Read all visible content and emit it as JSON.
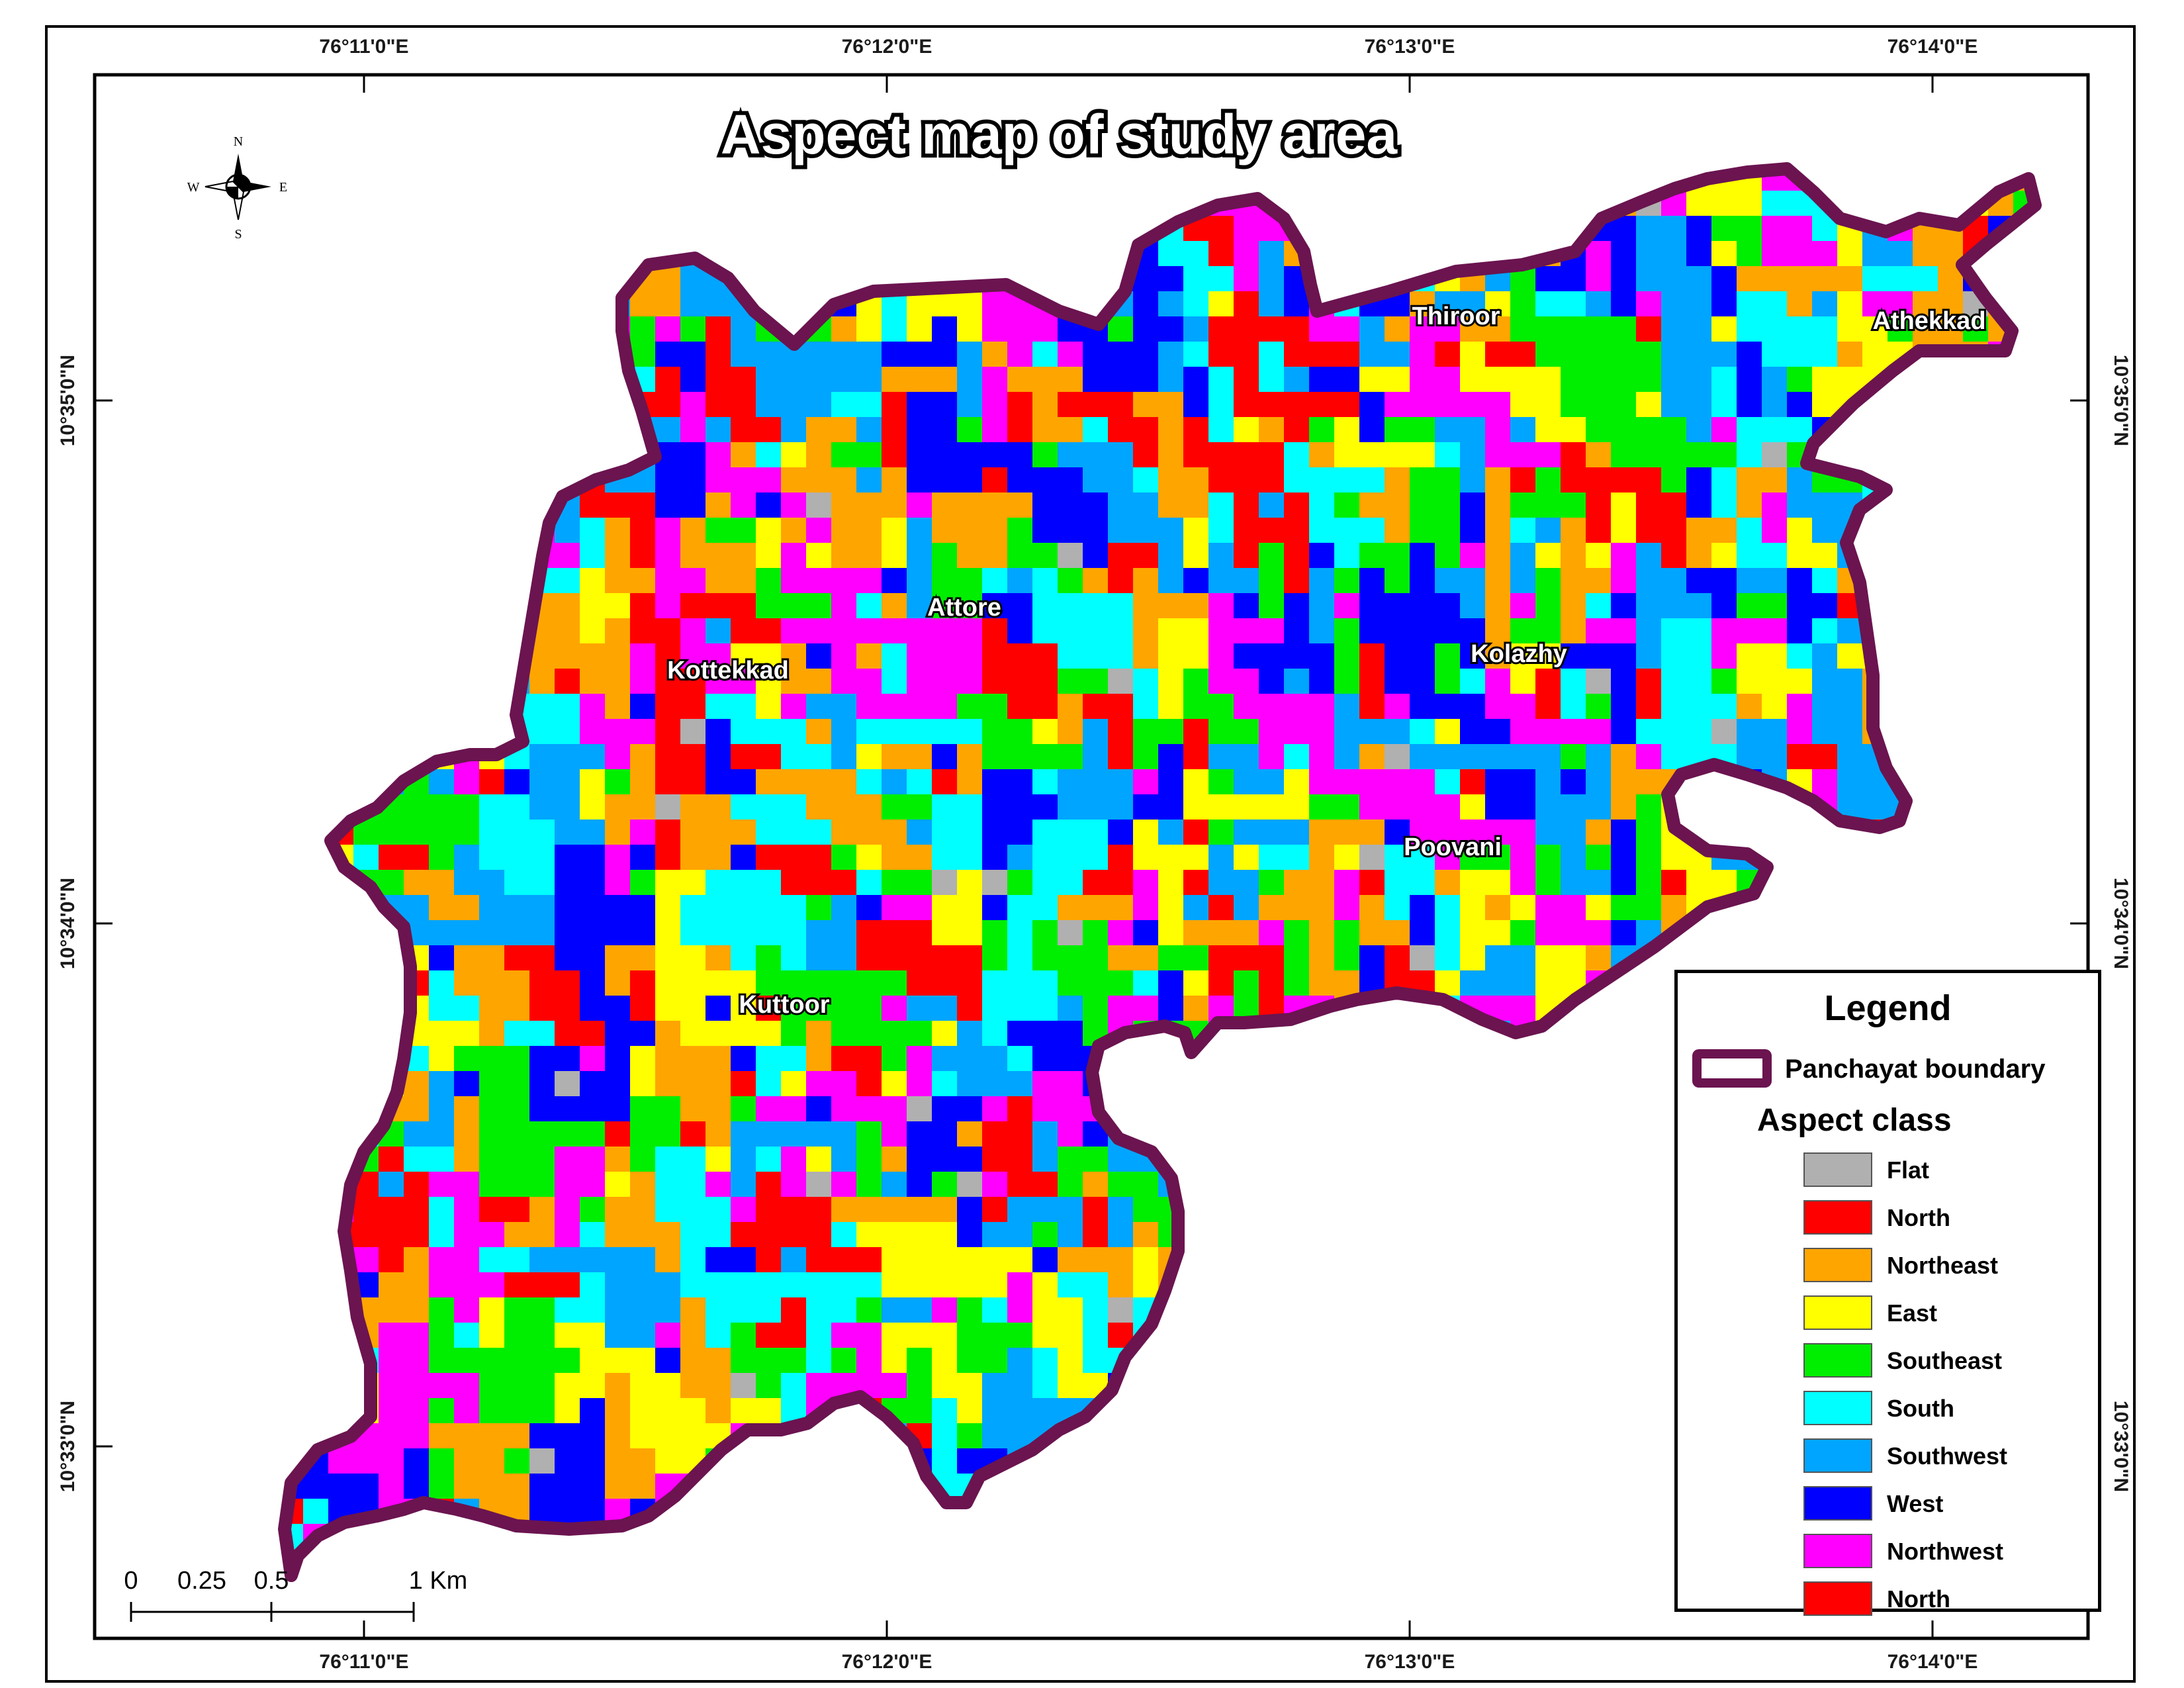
{
  "map_title": "Aspect map of study area",
  "graticule": {
    "longitudes": [
      "76°11'0\"E",
      "76°12'0\"E",
      "76°13'0\"E",
      "76°14'0\"E"
    ],
    "latitudes": [
      "10°35'0\"N",
      "10°34'0\"N",
      "10°33'0\"N"
    ]
  },
  "compass": {
    "n": "N",
    "s": "S",
    "e": "E",
    "w": "W"
  },
  "places": [
    "Thiroor",
    "Athekkad",
    "Attore",
    "Kottekkad",
    "Kolazhy",
    "Poovani",
    "Kuttoor"
  ],
  "scale_bar": {
    "labels": [
      "0",
      "0.25",
      "0.5",
      "1 Km"
    ]
  },
  "legend": {
    "title": "Legend",
    "boundary_label": "Panchayat boundary",
    "boundary_color": "#6b1450",
    "class_title": "Aspect class",
    "items": [
      {
        "label": "Flat",
        "color": "#b0b0b0"
      },
      {
        "label": "North",
        "color": "#ff0000"
      },
      {
        "label": "Northeast",
        "color": "#ffa500"
      },
      {
        "label": "East",
        "color": "#ffff00"
      },
      {
        "label": "Southeast",
        "color": "#00ee00"
      },
      {
        "label": "South",
        "color": "#00ffff"
      },
      {
        "label": "Southwest",
        "color": "#00a5ff"
      },
      {
        "label": "West",
        "color": "#0000ff"
      },
      {
        "label": "Northwest",
        "color": "#ff00ff"
      },
      {
        "label": "North",
        "color": "#ff0000"
      }
    ]
  }
}
